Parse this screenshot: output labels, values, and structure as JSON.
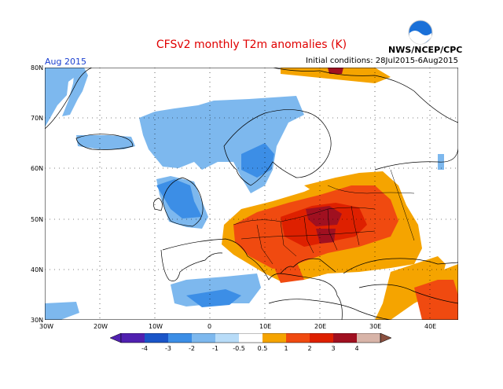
{
  "map": {
    "title": "CFSv2 monthly T2m anomalies (K)",
    "month_label": "Aug 2015",
    "initial_conditions": "Initial conditions: 28Jul2015-6Aug2015",
    "agency": "NWS/NCEP/CPC",
    "logo_text": "NOAA",
    "lat_labels": [
      "80N",
      "70N",
      "60N",
      "50N",
      "40N",
      "30N"
    ],
    "lon_labels": [
      "30W",
      "20W",
      "10W",
      "0",
      "10E",
      "20E",
      "30E",
      "40E"
    ],
    "colorbar_labels": [
      "-4",
      "-3",
      "-2",
      "-1",
      "-0.5",
      "0.5",
      "1",
      "2",
      "3",
      "4"
    ],
    "colorbar_colors": [
      "#5020b0",
      "#1a55c8",
      "#3c8ee6",
      "#7db8ee",
      "#b8dcf8",
      "#ffffff",
      "#f5a400",
      "#f04a10",
      "#de2000",
      "#a01020",
      "#d8b4a8",
      "#8a5040"
    ],
    "land_color": "#ffffff",
    "ocean_color": "#ffffff",
    "grid": "dotted"
  }
}
